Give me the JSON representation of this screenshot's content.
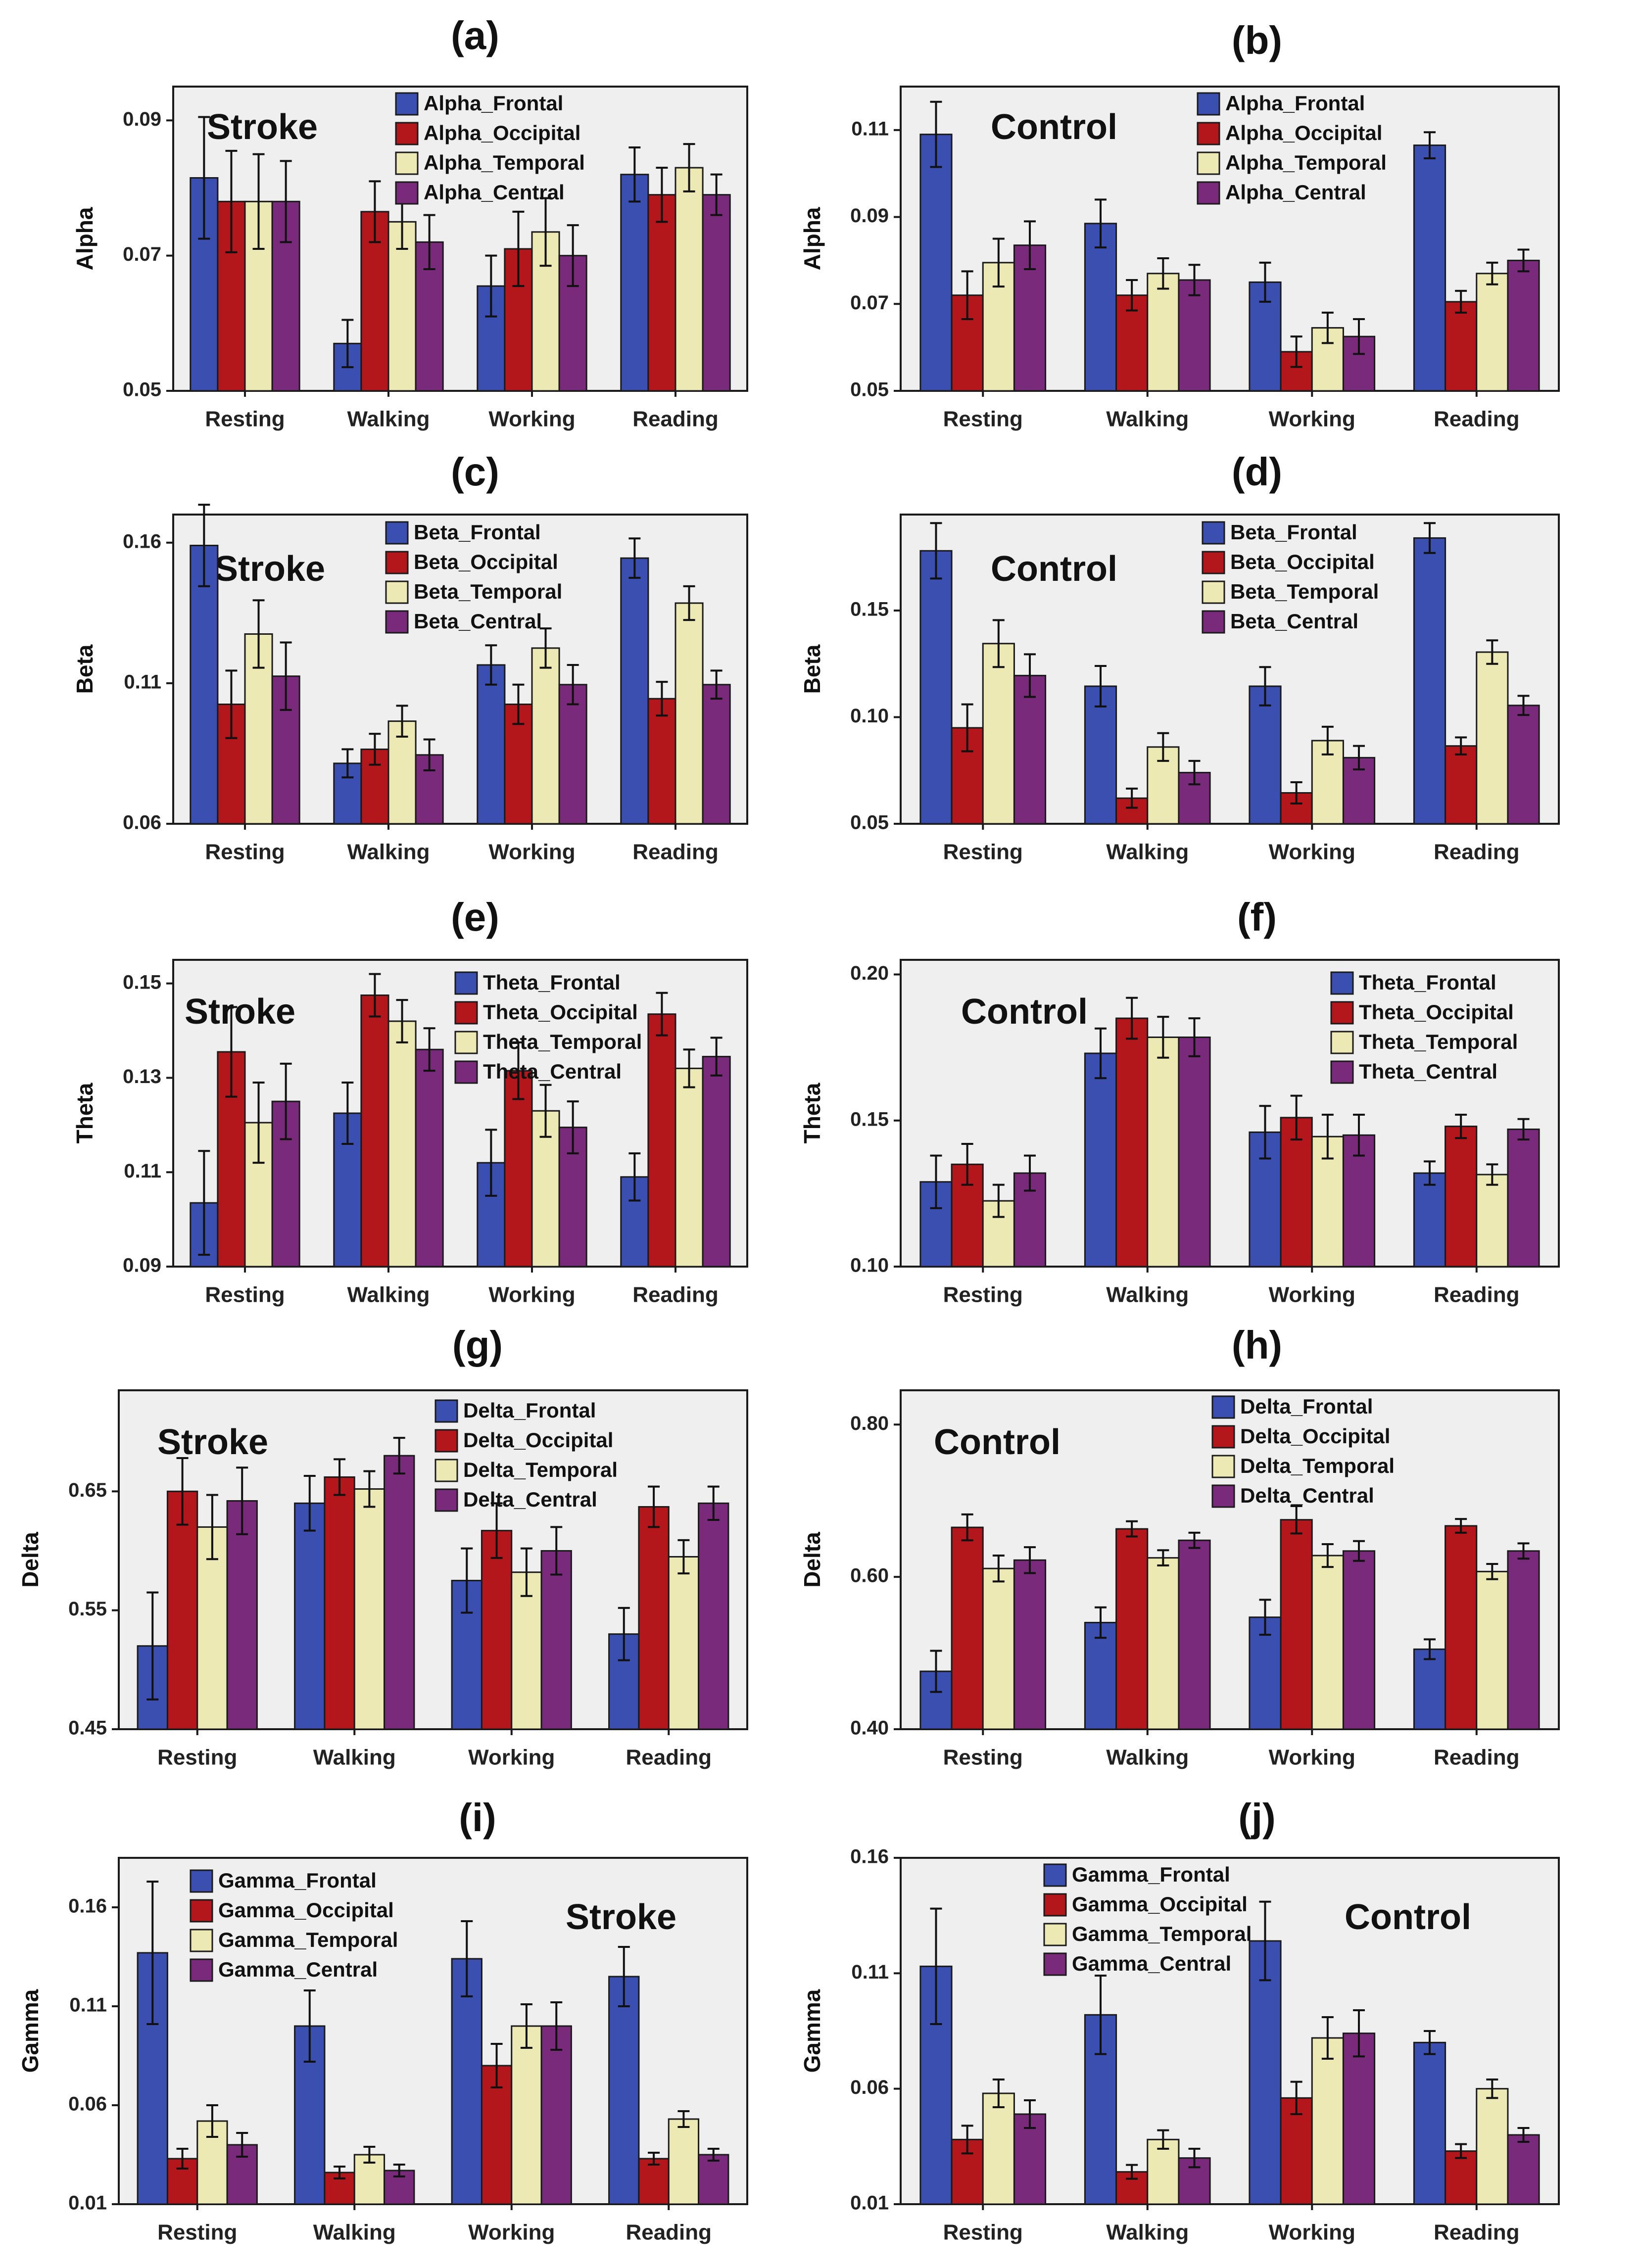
{
  "chart_data": [
    {
      "id": "a",
      "panel_label": "(a)",
      "type": "bar",
      "group": "Stroke",
      "ylabel": "Alpha",
      "ylim": [
        0.05,
        0.095
      ],
      "yticks": [
        0.05,
        0.07,
        0.09
      ],
      "tick_labels": [
        "0.05",
        "0.07",
        "0.09"
      ],
      "categories": [
        "Resting",
        "Walking",
        "Working",
        "Reading"
      ],
      "legend_position": "top-center",
      "series": [
        {
          "name": "Alpha_Frontal",
          "values": [
            0.0815,
            0.057,
            0.0655,
            0.082
          ],
          "errors": [
            0.009,
            0.0035,
            0.0045,
            0.004
          ]
        },
        {
          "name": "Alpha_Occipital",
          "values": [
            0.078,
            0.0765,
            0.071,
            0.079
          ],
          "errors": [
            0.0075,
            0.0045,
            0.0055,
            0.004
          ]
        },
        {
          "name": "Alpha_Temporal",
          "values": [
            0.078,
            0.075,
            0.0735,
            0.083
          ],
          "errors": [
            0.007,
            0.004,
            0.005,
            0.0035
          ]
        },
        {
          "name": "Alpha_Central",
          "values": [
            0.078,
            0.072,
            0.07,
            0.079
          ],
          "errors": [
            0.006,
            0.004,
            0.0045,
            0.003
          ]
        }
      ]
    },
    {
      "id": "b",
      "panel_label": "(b)",
      "type": "bar",
      "group": "Control",
      "ylabel": "Alpha",
      "ylim": [
        0.05,
        0.12
      ],
      "yticks": [
        0.05,
        0.07,
        0.09,
        0.11
      ],
      "tick_labels": [
        "0.05",
        "0.07",
        "0.09",
        "0.11"
      ],
      "categories": [
        "Resting",
        "Walking",
        "Working",
        "Reading"
      ],
      "legend_position": "top-right",
      "series": [
        {
          "name": "Alpha_Frontal",
          "values": [
            0.109,
            0.0885,
            0.075,
            0.1065
          ],
          "errors": [
            0.0075,
            0.0055,
            0.0045,
            0.003
          ]
        },
        {
          "name": "Alpha_Occipital",
          "values": [
            0.072,
            0.072,
            0.059,
            0.0705
          ],
          "errors": [
            0.0055,
            0.0035,
            0.0035,
            0.0025
          ]
        },
        {
          "name": "Alpha_Temporal",
          "values": [
            0.0795,
            0.077,
            0.0645,
            0.077
          ],
          "errors": [
            0.0055,
            0.0035,
            0.0035,
            0.0025
          ]
        },
        {
          "name": "Alpha_Central",
          "values": [
            0.0835,
            0.0755,
            0.0625,
            0.08
          ],
          "errors": [
            0.0055,
            0.0035,
            0.004,
            0.0025
          ]
        }
      ]
    },
    {
      "id": "c",
      "panel_label": "(c)",
      "type": "bar",
      "group": "Stroke",
      "ylabel": "Beta",
      "ylim": [
        0.06,
        0.17
      ],
      "yticks": [
        0.06,
        0.11,
        0.16
      ],
      "tick_labels": [
        "0.06",
        "0.11",
        "0.16"
      ],
      "categories": [
        "Resting",
        "Walking",
        "Working",
        "Reading"
      ],
      "legend_position": "top-center",
      "series": [
        {
          "name": "Beta_Frontal",
          "values": [
            0.159,
            0.0815,
            0.1165,
            0.1545
          ],
          "errors": [
            0.0145,
            0.005,
            0.007,
            0.007
          ]
        },
        {
          "name": "Beta_Occipital",
          "values": [
            0.1025,
            0.0865,
            0.1025,
            0.1045
          ],
          "errors": [
            0.012,
            0.0055,
            0.007,
            0.006
          ]
        },
        {
          "name": "Beta_Temporal",
          "values": [
            0.1275,
            0.0965,
            0.1225,
            0.1385
          ],
          "errors": [
            0.012,
            0.0055,
            0.007,
            0.006
          ]
        },
        {
          "name": "Beta_Central",
          "values": [
            0.1125,
            0.0845,
            0.1095,
            0.1095
          ],
          "errors": [
            0.012,
            0.0055,
            0.007,
            0.005
          ]
        }
      ]
    },
    {
      "id": "d",
      "panel_label": "(d)",
      "type": "bar",
      "group": "Control",
      "ylabel": "Beta",
      "ylim": [
        0.05,
        0.195
      ],
      "yticks": [
        0.05,
        0.1,
        0.15
      ],
      "tick_labels": [
        "0.05",
        "0.10",
        "0.15"
      ],
      "categories": [
        "Resting",
        "Walking",
        "Working",
        "Reading"
      ],
      "legend_position": "top-right",
      "series": [
        {
          "name": "Beta_Frontal",
          "values": [
            0.178,
            0.1145,
            0.1145,
            0.184
          ],
          "errors": [
            0.013,
            0.0095,
            0.009,
            0.007
          ]
        },
        {
          "name": "Beta_Occipital",
          "values": [
            0.095,
            0.062,
            0.0645,
            0.0865
          ],
          "errors": [
            0.011,
            0.0045,
            0.005,
            0.004
          ]
        },
        {
          "name": "Beta_Temporal",
          "values": [
            0.1345,
            0.086,
            0.089,
            0.1305
          ],
          "errors": [
            0.011,
            0.0065,
            0.0065,
            0.0055
          ]
        },
        {
          "name": "Beta_Central",
          "values": [
            0.1195,
            0.074,
            0.081,
            0.1055
          ],
          "errors": [
            0.01,
            0.0055,
            0.0055,
            0.0045
          ]
        }
      ]
    },
    {
      "id": "e",
      "panel_label": "(e)",
      "type": "bar",
      "group": "Stroke",
      "ylabel": "Theta",
      "ylim": [
        0.09,
        0.155
      ],
      "yticks": [
        0.09,
        0.11,
        0.13,
        0.15
      ],
      "tick_labels": [
        "0.09",
        "0.11",
        "0.13",
        "0.15"
      ],
      "categories": [
        "Resting",
        "Walking",
        "Working",
        "Reading"
      ],
      "legend_position": "top-right",
      "series": [
        {
          "name": "Theta_Frontal",
          "values": [
            0.1035,
            0.1225,
            0.112,
            0.109
          ],
          "errors": [
            0.011,
            0.0065,
            0.007,
            0.005
          ]
        },
        {
          "name": "Theta_Occipital",
          "values": [
            0.1355,
            0.1475,
            0.1315,
            0.1435
          ],
          "errors": [
            0.0095,
            0.0045,
            0.006,
            0.0045
          ]
        },
        {
          "name": "Theta_Temporal",
          "values": [
            0.1205,
            0.142,
            0.123,
            0.132
          ],
          "errors": [
            0.0085,
            0.0045,
            0.0055,
            0.004
          ]
        },
        {
          "name": "Theta_Central",
          "values": [
            0.125,
            0.136,
            0.1195,
            0.1345
          ],
          "errors": [
            0.008,
            0.0045,
            0.0055,
            0.004
          ]
        }
      ]
    },
    {
      "id": "f",
      "panel_label": "(f)",
      "type": "bar",
      "group": "Control",
      "ylabel": "Theta",
      "ylim": [
        0.1,
        0.205
      ],
      "yticks": [
        0.1,
        0.15,
        0.2
      ],
      "tick_labels": [
        "0.10",
        "0.15",
        "0.20"
      ],
      "categories": [
        "Resting",
        "Walking",
        "Working",
        "Reading"
      ],
      "legend_position": "top-right",
      "series": [
        {
          "name": "Theta_Frontal",
          "values": [
            0.129,
            0.173,
            0.146,
            0.132
          ],
          "errors": [
            0.009,
            0.0085,
            0.009,
            0.004
          ]
        },
        {
          "name": "Theta_Occipital",
          "values": [
            0.135,
            0.185,
            0.151,
            0.148
          ],
          "errors": [
            0.007,
            0.007,
            0.0075,
            0.004
          ]
        },
        {
          "name": "Theta_Temporal",
          "values": [
            0.1225,
            0.1785,
            0.1445,
            0.1315
          ],
          "errors": [
            0.0055,
            0.007,
            0.0075,
            0.0035
          ]
        },
        {
          "name": "Theta_Central",
          "values": [
            0.132,
            0.1785,
            0.145,
            0.147
          ],
          "errors": [
            0.006,
            0.0065,
            0.007,
            0.0035
          ]
        }
      ]
    },
    {
      "id": "g",
      "panel_label": "(g)",
      "type": "bar",
      "group": "Stroke",
      "ylabel": "Delta",
      "ylim": [
        0.45,
        0.735
      ],
      "yticks": [
        0.45,
        0.55,
        0.65
      ],
      "tick_labels": [
        "0.45",
        "0.55",
        "0.65"
      ],
      "categories": [
        "Resting",
        "Walking",
        "Working",
        "Reading"
      ],
      "legend_position": "top-right",
      "series": [
        {
          "name": "Delta_Frontal",
          "values": [
            0.52,
            0.64,
            0.575,
            0.53
          ],
          "errors": [
            0.045,
            0.023,
            0.027,
            0.022
          ]
        },
        {
          "name": "Delta_Occipital",
          "values": [
            0.65,
            0.662,
            0.617,
            0.637
          ],
          "errors": [
            0.028,
            0.015,
            0.023,
            0.017
          ]
        },
        {
          "name": "Delta_Temporal",
          "values": [
            0.62,
            0.652,
            0.582,
            0.595
          ],
          "errors": [
            0.027,
            0.015,
            0.02,
            0.014
          ]
        },
        {
          "name": "Delta_Central",
          "values": [
            0.642,
            0.68,
            0.6,
            0.64
          ],
          "errors": [
            0.028,
            0.015,
            0.02,
            0.014
          ]
        }
      ]
    },
    {
      "id": "h",
      "panel_label": "(h)",
      "type": "bar",
      "group": "Control",
      "ylabel": "Delta",
      "ylim": [
        0.4,
        0.845
      ],
      "yticks": [
        0.4,
        0.6,
        0.8
      ],
      "tick_labels": [
        "0.40",
        "0.60",
        "0.80"
      ],
      "categories": [
        "Resting",
        "Walking",
        "Working",
        "Reading"
      ],
      "legend_position": "top-right",
      "series": [
        {
          "name": "Delta_Frontal",
          "values": [
            0.476,
            0.54,
            0.547,
            0.505
          ],
          "errors": [
            0.027,
            0.02,
            0.023,
            0.013
          ]
        },
        {
          "name": "Delta_Occipital",
          "values": [
            0.665,
            0.663,
            0.675,
            0.667
          ],
          "errors": [
            0.017,
            0.01,
            0.018,
            0.009
          ]
        },
        {
          "name": "Delta_Temporal",
          "values": [
            0.611,
            0.625,
            0.628,
            0.607
          ],
          "errors": [
            0.017,
            0.01,
            0.015,
            0.01
          ]
        },
        {
          "name": "Delta_Central",
          "values": [
            0.622,
            0.648,
            0.634,
            0.634
          ],
          "errors": [
            0.017,
            0.01,
            0.013,
            0.01
          ]
        }
      ]
    },
    {
      "id": "i",
      "panel_label": "(i)",
      "type": "bar",
      "group": "Stroke",
      "ylabel": "Gamma",
      "ylim": [
        0.01,
        0.185
      ],
      "yticks": [
        0.01,
        0.06,
        0.11,
        0.16
      ],
      "tick_labels": [
        "0.01",
        "0.06",
        "0.11",
        "0.16"
      ],
      "categories": [
        "Resting",
        "Walking",
        "Working",
        "Reading"
      ],
      "legend_position": "top-left",
      "series": [
        {
          "name": "Gamma_Frontal",
          "values": [
            0.137,
            0.1,
            0.134,
            0.125
          ],
          "errors": [
            0.036,
            0.018,
            0.019,
            0.015
          ]
        },
        {
          "name": "Gamma_Occipital",
          "values": [
            0.033,
            0.026,
            0.08,
            0.033
          ],
          "errors": [
            0.005,
            0.003,
            0.011,
            0.003
          ]
        },
        {
          "name": "Gamma_Temporal",
          "values": [
            0.052,
            0.035,
            0.1,
            0.053
          ],
          "errors": [
            0.008,
            0.004,
            0.011,
            0.004
          ]
        },
        {
          "name": "Gamma_Central",
          "values": [
            0.04,
            0.027,
            0.1,
            0.035
          ],
          "errors": [
            0.006,
            0.003,
            0.012,
            0.003
          ]
        }
      ]
    },
    {
      "id": "j",
      "panel_label": "(j)",
      "type": "bar",
      "group": "Control",
      "ylabel": "Gamma",
      "ylim": [
        0.01,
        0.16
      ],
      "yticks": [
        0.01,
        0.06,
        0.11,
        0.16
      ],
      "tick_labels": [
        "0.01",
        "0.06",
        "0.11",
        "0.16"
      ],
      "categories": [
        "Resting",
        "Walking",
        "Working",
        "Reading"
      ],
      "legend_position": "top-center",
      "series": [
        {
          "name": "Gamma_Frontal",
          "values": [
            0.113,
            0.092,
            0.124,
            0.08
          ],
          "errors": [
            0.025,
            0.017,
            0.017,
            0.005
          ]
        },
        {
          "name": "Gamma_Occipital",
          "values": [
            0.038,
            0.024,
            0.056,
            0.033
          ],
          "errors": [
            0.006,
            0.003,
            0.007,
            0.003
          ]
        },
        {
          "name": "Gamma_Temporal",
          "values": [
            0.058,
            0.038,
            0.082,
            0.06
          ],
          "errors": [
            0.006,
            0.004,
            0.009,
            0.004
          ]
        },
        {
          "name": "Gamma_Central",
          "values": [
            0.049,
            0.03,
            0.084,
            0.04
          ],
          "errors": [
            0.006,
            0.004,
            0.01,
            0.003
          ]
        }
      ]
    }
  ],
  "colors": {
    "frontal": "#3b4fb0",
    "occipital": "#b3171c",
    "temporal": "#ede9b5",
    "central": "#7a2a7a",
    "plot_background": "#efefef"
  }
}
